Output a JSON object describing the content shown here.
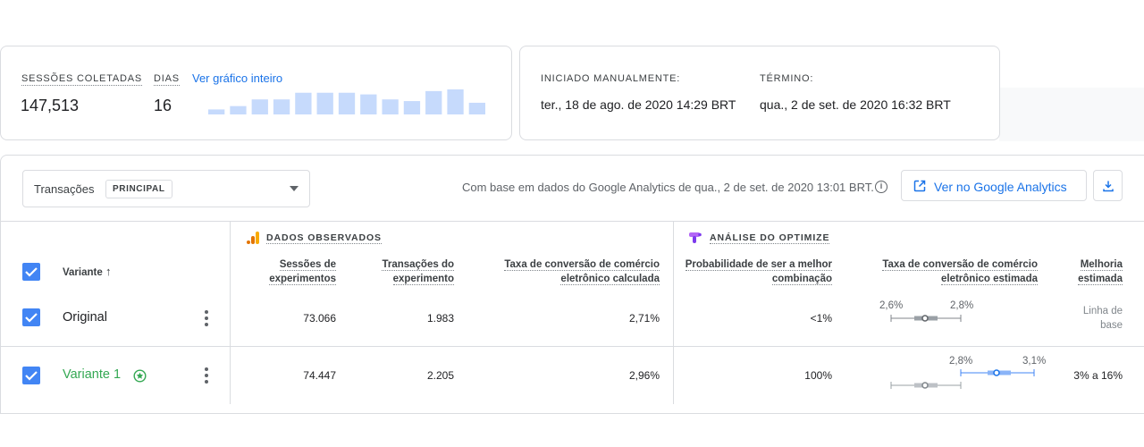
{
  "summary": {
    "sessions_label": "SESSÕES COLETADAS",
    "sessions_value": "147,513",
    "days_label": "DIAS",
    "days_value": "16",
    "full_chart_link": "Ver gráfico inteiro",
    "daily_sessions_sparkline": [
      3,
      5,
      9,
      9,
      13,
      13,
      13,
      12,
      9,
      8,
      14,
      15,
      7
    ]
  },
  "dates": {
    "started_label": "INICIADO MANUALMENTE:",
    "started_value": "ter., 18 de ago. de 2020 14:29 BRT",
    "end_label": "TÉRMINO:",
    "end_value": "qua., 2 de set. de 2020 16:32 BRT"
  },
  "toolbar": {
    "objective_select": "Transações",
    "objective_badge": "PRINCIPAL",
    "basis_text": "Com base em dados do Google Analytics de qua., 2 de set. de 2020 13:01 BRT.",
    "ga_button": "Ver no Google Analytics"
  },
  "table": {
    "observed_section": "DADOS OBSERVADOS",
    "optimize_section": "ANÁLISE DO OPTIMIZE",
    "variant_header": "Variante",
    "columns": {
      "sessions": [
        "Sessões de",
        "experimentos"
      ],
      "transactions": [
        "Transações do",
        "experimento"
      ],
      "conv_rate": [
        "Taxa de conversão de comércio",
        "eletrônico calculada"
      ],
      "probability": [
        "Probabilidade de ser a melhor",
        "combinação"
      ],
      "est_rate": [
        "Taxa de conversão de comércio",
        "eletrônico estimada"
      ],
      "improvement": [
        "Melhoria",
        "estimada"
      ]
    },
    "rows": [
      {
        "name": "Original",
        "sessions": "73.066",
        "transactions": "1.983",
        "conv_rate": "2,71%",
        "probability": "<1%",
        "range_low": "2,6%",
        "range_high": "2,8%",
        "improvement": [
          "Linha de",
          "base"
        ]
      },
      {
        "name": "Variante 1",
        "sessions": "74.447",
        "transactions": "2.205",
        "conv_rate": "2,96%",
        "probability": "100%",
        "range_low": "2,8%",
        "range_high": "3,1%",
        "improvement": "3% a 16%"
      }
    ]
  },
  "colors": {
    "accent_blue": "#1a73e8",
    "checkbox_blue": "#4285f4",
    "sparkline_bar": "#c6dafc",
    "winner_green": "#34a853",
    "analytics_orange": "#f9ab00",
    "optimize_purple": "#b366f6"
  }
}
